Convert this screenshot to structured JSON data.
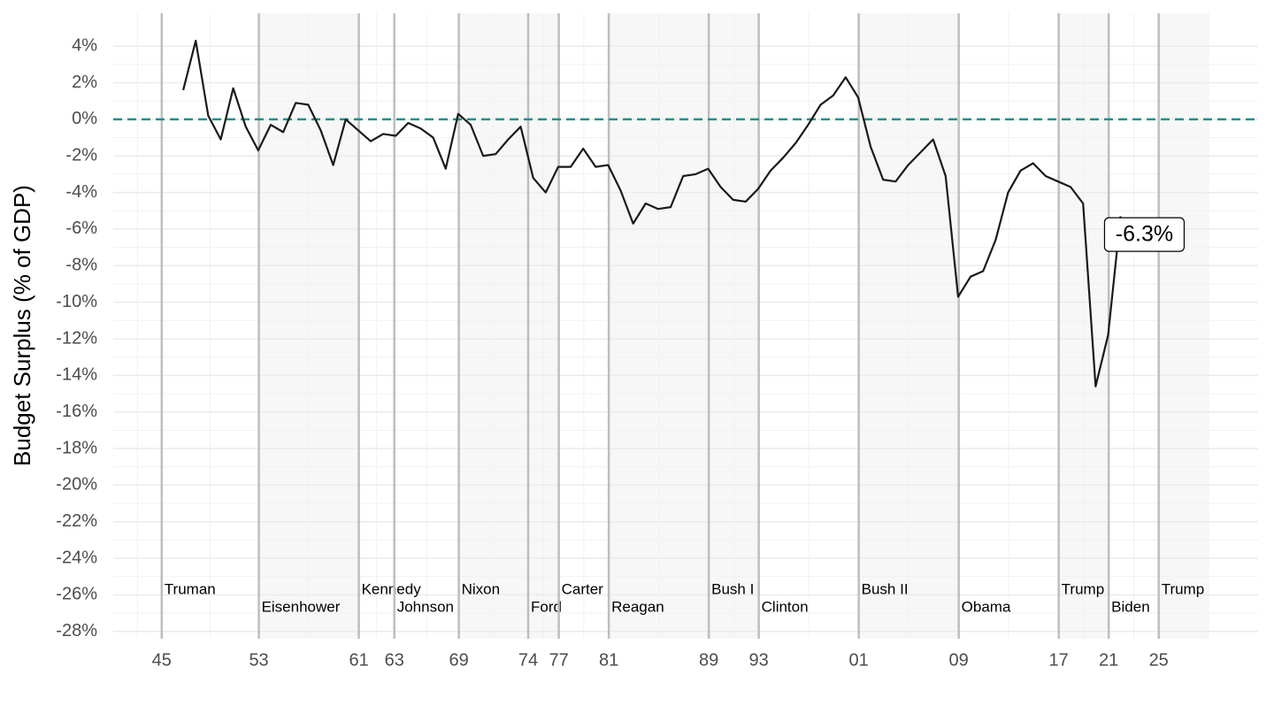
{
  "chart_data": {
    "type": "line",
    "y_label": "Budget Surplus (% of GDP)",
    "xlim": [
      1941.4,
      2033
    ],
    "ylim": [
      -28.4,
      5.8
    ],
    "xticks": [
      {
        "value": 1945.28,
        "label": "45"
      },
      {
        "value": 1953.05,
        "label": "53"
      },
      {
        "value": 1961.05,
        "label": "61"
      },
      {
        "value": 1963.89,
        "label": "63"
      },
      {
        "value": 1969.05,
        "label": "69"
      },
      {
        "value": 1974.6,
        "label": "74"
      },
      {
        "value": 1977.05,
        "label": "77"
      },
      {
        "value": 1981.05,
        "label": "81"
      },
      {
        "value": 1989.05,
        "label": "89"
      },
      {
        "value": 1993.05,
        "label": "93"
      },
      {
        "value": 2001.05,
        "label": "01"
      },
      {
        "value": 2009.05,
        "label": "09"
      },
      {
        "value": 2017.05,
        "label": "17"
      },
      {
        "value": 2021.05,
        "label": "21"
      },
      {
        "value": 2025.05,
        "label": "25"
      }
    ],
    "yticks": [
      {
        "value": 4,
        "label": "4%"
      },
      {
        "value": 2,
        "label": "2%"
      },
      {
        "value": 0,
        "label": "0%"
      },
      {
        "value": -2,
        "label": "-2%"
      },
      {
        "value": -4,
        "label": "-4%"
      },
      {
        "value": -6,
        "label": "-6%"
      },
      {
        "value": -8,
        "label": "-8%"
      },
      {
        "value": -10,
        "label": "-10%"
      },
      {
        "value": -12,
        "label": "-12%"
      },
      {
        "value": -14,
        "label": "-14%"
      },
      {
        "value": -16,
        "label": "-16%"
      },
      {
        "value": -18,
        "label": "-18%"
      },
      {
        "value": -20,
        "label": "-20%"
      },
      {
        "value": -22,
        "label": "-22%"
      },
      {
        "value": -24,
        "label": "-24%"
      },
      {
        "value": -26,
        "label": "-26%"
      },
      {
        "value": -28,
        "label": "-28%"
      }
    ],
    "grid": true,
    "hline": {
      "y": 0,
      "color": "#21908c"
    },
    "presidents": [
      {
        "name": "Truman",
        "start": 1945.28,
        "end": 1953.05,
        "color": "#ffffff"
      },
      {
        "name": "Eisenhower",
        "start": 1953.05,
        "end": 1961.05,
        "color": "#f7f7f7"
      },
      {
        "name": "Kennedy",
        "start": 1961.05,
        "end": 1963.89,
        "color": "#ffffff"
      },
      {
        "name": "Johnson",
        "start": 1963.89,
        "end": 1969.05,
        "color": "#ffffff"
      },
      {
        "name": "Nixon",
        "start": 1969.05,
        "end": 1974.6,
        "color": "#f7f7f7"
      },
      {
        "name": "Ford",
        "start": 1974.6,
        "end": 1977.05,
        "color": "#f7f7f7"
      },
      {
        "name": "Carter",
        "start": 1977.05,
        "end": 1981.05,
        "color": "#ffffff"
      },
      {
        "name": "Reagan",
        "start": 1981.05,
        "end": 1989.05,
        "color": "#f7f7f7"
      },
      {
        "name": "Bush I",
        "start": 1989.05,
        "end": 1993.05,
        "color": "#f7f7f7"
      },
      {
        "name": "Clinton",
        "start": 1993.05,
        "end": 2001.05,
        "color": "#ffffff"
      },
      {
        "name": "Bush II",
        "start": 2001.05,
        "end": 2009.05,
        "color": "#f7f7f7"
      },
      {
        "name": "Obama",
        "start": 2009.05,
        "end": 2017.05,
        "color": "#ffffff"
      },
      {
        "name": "Trump",
        "start": 2017.05,
        "end": 2021.05,
        "color": "#f7f7f7"
      },
      {
        "name": "Biden",
        "start": 2021.05,
        "end": 2025.05,
        "color": "#ffffff"
      },
      {
        "name": "Trump",
        "start": 2025.05,
        "end": 2029.05,
        "color": "#f7f7f7"
      }
    ],
    "x": [
      1947,
      1948,
      1949,
      1950,
      1951,
      1952,
      1953,
      1954,
      1955,
      1956,
      1957,
      1958,
      1959,
      1960,
      1961,
      1962,
      1963,
      1964,
      1965,
      1966,
      1967,
      1968,
      1969,
      1970,
      1971,
      1972,
      1973,
      1974,
      1975,
      1976,
      1977,
      1978,
      1979,
      1980,
      1981,
      1982,
      1983,
      1984,
      1985,
      1986,
      1987,
      1988,
      1989,
      1990,
      1991,
      1992,
      1993,
      1994,
      1995,
      1996,
      1997,
      1998,
      1999,
      2000,
      2001,
      2002,
      2003,
      2004,
      2005,
      2006,
      2007,
      2008,
      2009,
      2010,
      2011,
      2012,
      2013,
      2014,
      2015,
      2016,
      2017,
      2018,
      2019,
      2020,
      2021,
      2022
    ],
    "series": [
      {
        "color": "#1a1a1a",
        "values": [
          1.6,
          4.3,
          0.2,
          -1.1,
          1.7,
          -0.4,
          -1.7,
          -0.3,
          -0.7,
          0.9,
          0.8,
          -0.6,
          -2.5,
          0.0,
          -0.6,
          -1.2,
          -0.8,
          -0.9,
          -0.2,
          -0.5,
          -1.0,
          -2.7,
          0.3,
          -0.3,
          -2.0,
          -1.9,
          -1.1,
          -0.4,
          -3.2,
          -4.0,
          -2.6,
          -2.6,
          -1.6,
          -2.6,
          -2.5,
          -3.9,
          -5.7,
          -4.6,
          -4.9,
          -4.8,
          -3.1,
          -3.0,
          -2.7,
          -3.7,
          -4.4,
          -4.5,
          -3.8,
          -2.8,
          -2.1,
          -1.3,
          -0.3,
          0.8,
          1.3,
          2.3,
          1.2,
          -1.5,
          -3.3,
          -3.4,
          -2.5,
          -1.8,
          -1.1,
          -3.1,
          -9.7,
          -8.6,
          -8.3,
          -6.6,
          -4.0,
          -2.8,
          -2.4,
          -3.1,
          -3.4,
          -3.7,
          -4.6,
          -14.6,
          -11.8,
          -5.3
        ]
      }
    ],
    "annotation": {
      "label": "-6.3%",
      "x": 2023.9,
      "y": -6.3
    }
  }
}
